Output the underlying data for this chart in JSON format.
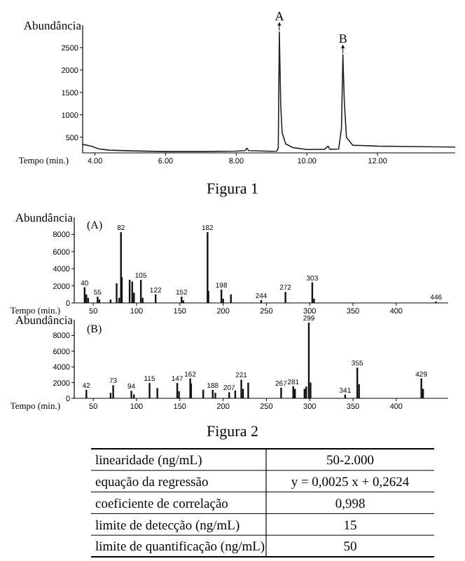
{
  "chart_data": [
    {
      "type": "line",
      "xlabel": "Tempo (min.)",
      "ylabel": "Abundância",
      "xlim": [
        3.65,
        14.2
      ],
      "ylim": [
        150,
        3000
      ],
      "xticks": [
        {
          "value": 4,
          "label": "4.00"
        },
        {
          "value": 6,
          "label": "6.00"
        },
        {
          "value": 8,
          "label": "8.00"
        },
        {
          "value": 10,
          "label": "10.00"
        },
        {
          "value": 12,
          "label": "12.00"
        }
      ],
      "yticks": [
        500,
        1000,
        1500,
        2000,
        2500
      ],
      "series": [
        {
          "color": "#222222",
          "x": [
            3.65,
            3.9,
            4.1,
            4.4,
            5,
            6,
            7,
            8,
            8.25,
            8.3,
            8.35,
            9,
            9.15,
            9.19,
            9.22,
            9.26,
            9.3,
            9.4,
            9.6,
            10,
            10.5,
            10.6,
            10.65,
            10.9,
            10.98,
            11.02,
            11.06,
            11.12,
            11.3,
            12,
            13,
            14.2
          ],
          "values": [
            340,
            300,
            240,
            210,
            195,
            180,
            180,
            190,
            200,
            255,
            200,
            185,
            190,
            260,
            2850,
            1200,
            600,
            350,
            270,
            225,
            230,
            300,
            230,
            235,
            700,
            2345,
            1300,
            500,
            320,
            300,
            290,
            280
          ]
        }
      ],
      "annotations": [
        {
          "text": "A",
          "x": 9.22,
          "y": 2850
        },
        {
          "text": "B",
          "x": 11.02,
          "y": 2345
        },
        "Figura 1"
      ]
    },
    {
      "type": "bar",
      "xlabel": "Tempo (min.)",
      "ylabel": "Abundância",
      "xlim": [
        28,
        460
      ],
      "ylim": [
        0,
        10000
      ],
      "xticks": [
        50,
        100,
        150,
        200,
        250,
        300,
        350,
        400
      ],
      "yticks": [
        0,
        2000,
        4000,
        6000,
        8000
      ],
      "series": [
        {
          "color": "#111111",
          "x": [
            40,
            42,
            44,
            55,
            57,
            70,
            77,
            80,
            82,
            83,
            92,
            95,
            97,
            105,
            107,
            122,
            152,
            154,
            182,
            183,
            198,
            200,
            209,
            244,
            272,
            303,
            305,
            446
          ],
          "values": [
            1840,
            1000,
            600,
            730,
            400,
            400,
            2300,
            600,
            8270,
            3000,
            2700,
            2500,
            1200,
            2680,
            600,
            1000,
            730,
            300,
            8270,
            1400,
            1560,
            500,
            1000,
            330,
            1280,
            2400,
            500,
            170
          ]
        }
      ],
      "annotations": [
        "(A)",
        {
          "text": "40",
          "x": 40,
          "y": 1840
        },
        {
          "text": "55",
          "x": 55,
          "y": 730
        },
        {
          "text": "82",
          "x": 82,
          "y": 8270
        },
        {
          "text": "105",
          "x": 105,
          "y": 2680
        },
        {
          "text": "122",
          "x": 122,
          "y": 1000
        },
        {
          "text": "152",
          "x": 152,
          "y": 730
        },
        {
          "text": "182",
          "x": 182,
          "y": 8270
        },
        {
          "text": "198",
          "x": 198,
          "y": 1560
        },
        {
          "text": "244",
          "x": 244,
          "y": 330
        },
        {
          "text": "272",
          "x": 272,
          "y": 1280
        },
        {
          "text": "303",
          "x": 303,
          "y": 2400
        },
        {
          "text": "446",
          "x": 446,
          "y": 170
        }
      ]
    },
    {
      "type": "bar",
      "xlabel": "Tempo (min.)",
      "ylabel": "Abundância",
      "xlim": [
        28,
        460
      ],
      "ylim": [
        0,
        10000
      ],
      "xticks": [
        50,
        100,
        150,
        200,
        250,
        300,
        350,
        400
      ],
      "yticks": [
        0,
        2000,
        4000,
        6000,
        8000
      ],
      "series": [
        {
          "color": "#111111",
          "x": [
            42,
            70,
            73,
            94,
            97,
            115,
            124,
            147,
            149,
            162,
            163,
            177,
            188,
            191,
            207,
            214,
            221,
            223,
            229,
            267,
            281,
            283,
            294,
            296,
            299,
            301,
            341,
            355,
            357,
            429,
            431
          ],
          "values": [
            1070,
            700,
            1660,
            950,
            500,
            1950,
            1300,
            1950,
            900,
            2540,
            1900,
            1100,
            1070,
            700,
            770,
            1000,
            2370,
            1200,
            2000,
            1360,
            1540,
            1200,
            1200,
            1500,
            9640,
            2000,
            470,
            3900,
            1800,
            2540,
            1200
          ]
        }
      ],
      "annotations": [
        "(B)",
        "Figura 2",
        {
          "text": "42",
          "x": 42,
          "y": 1070
        },
        {
          "text": "73",
          "x": 73,
          "y": 1660
        },
        {
          "text": "94",
          "x": 94,
          "y": 950
        },
        {
          "text": "115",
          "x": 115,
          "y": 1950
        },
        {
          "text": "147",
          "x": 147,
          "y": 1950
        },
        {
          "text": "162",
          "x": 162,
          "y": 2540
        },
        {
          "text": "188",
          "x": 188,
          "y": 1070
        },
        {
          "text": "207",
          "x": 207,
          "y": 770
        },
        {
          "text": "221",
          "x": 221,
          "y": 2370
        },
        {
          "text": "267",
          "x": 267,
          "y": 1360
        },
        {
          "text": "281",
          "x": 281,
          "y": 1540
        },
        {
          "text": "299",
          "x": 299,
          "y": 9640
        },
        {
          "text": "341",
          "x": 341,
          "y": 470
        },
        {
          "text": "355",
          "x": 355,
          "y": 3900
        },
        {
          "text": "429",
          "x": 429,
          "y": 2540
        }
      ]
    },
    {
      "type": "other",
      "categories": [
        "linearidade (ng/mL)",
        "equação da regressão",
        "coeficiente de correlação",
        "limite de detecção (ng/mL)",
        "limite de quantificação (ng/mL)"
      ],
      "value_labels": [
        "50-2.000",
        "y = 0,0025 x + 0,2624",
        "0,998",
        "15",
        "50"
      ]
    }
  ]
}
